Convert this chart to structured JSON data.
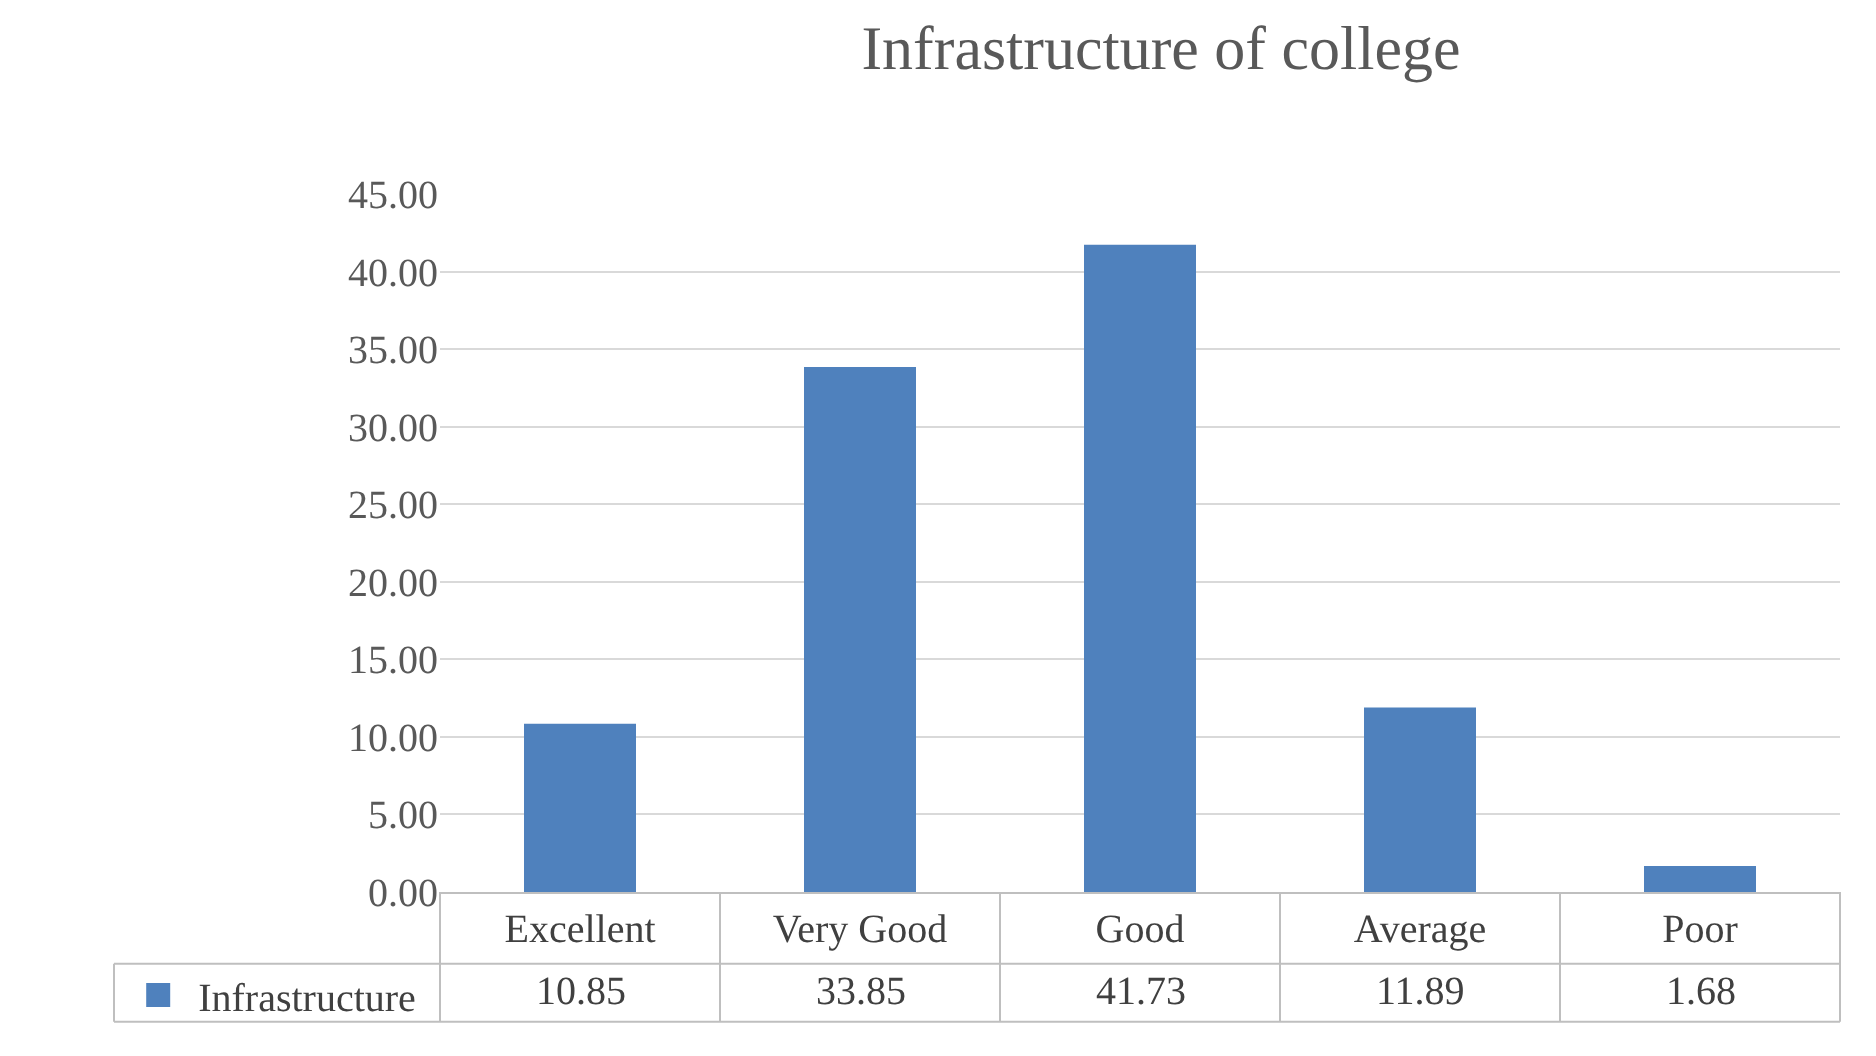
{
  "chart_data": {
    "type": "bar",
    "title": "Infrastructure of college",
    "categories": [
      "Excellent",
      "Very Good",
      "Good",
      "Average",
      "Poor"
    ],
    "series": [
      {
        "name": "Infrastructure",
        "color": "#4f81bd",
        "values": [
          10.85,
          33.85,
          41.73,
          11.89,
          1.68
        ]
      }
    ],
    "ylim": [
      0,
      45
    ],
    "yticks": [
      {
        "value": 0,
        "label": "0.00"
      },
      {
        "value": 5,
        "label": "5.00"
      },
      {
        "value": 10,
        "label": "10.00"
      },
      {
        "value": 15,
        "label": "15.00"
      },
      {
        "value": 20,
        "label": "20.00"
      },
      {
        "value": 25,
        "label": "25.00"
      },
      {
        "value": 30,
        "label": "30.00"
      },
      {
        "value": 35,
        "label": "35.00"
      },
      {
        "value": 40,
        "label": "40.00"
      },
      {
        "value": 45,
        "label": "45.00"
      }
    ],
    "grid": "y",
    "legend": "bottom left",
    "data_labels": true
  }
}
